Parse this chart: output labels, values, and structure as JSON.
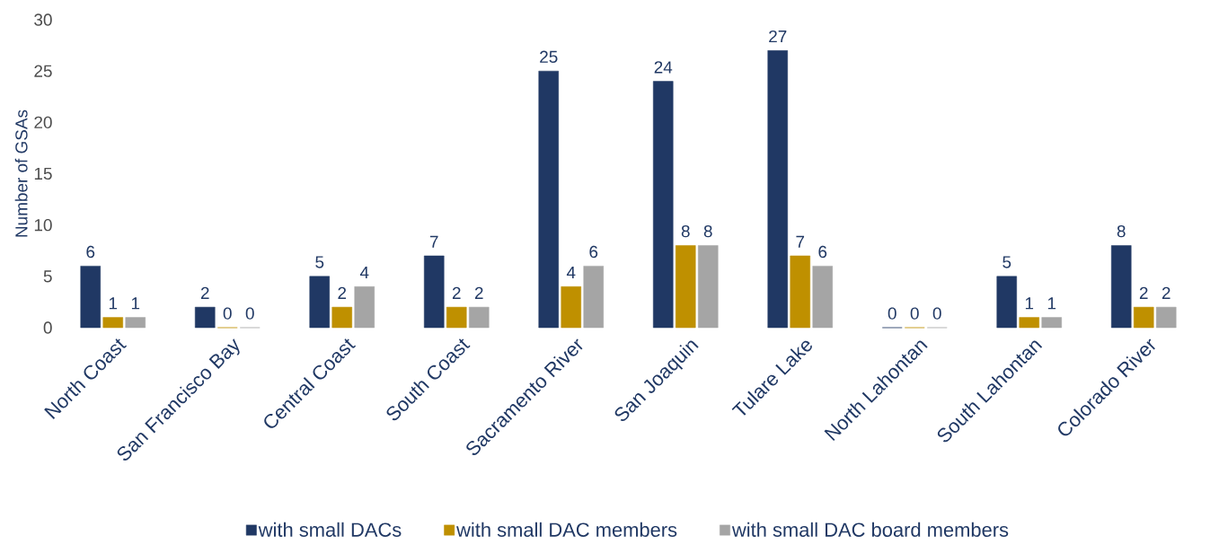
{
  "chart_data": {
    "type": "bar",
    "ylabel": "Number of GSAs",
    "categories": [
      "North Coast",
      "San Francisco Bay",
      "Central Coast",
      "South Coast",
      "Sacramento River",
      "San Joaquin",
      "Tulare Lake",
      "North Lahontan",
      "South Lahontan",
      "Colorado River"
    ],
    "series": [
      {
        "name": "with small DACs",
        "color": "#203864",
        "values": [
          6,
          2,
          5,
          7,
          25,
          24,
          27,
          0,
          5,
          8
        ]
      },
      {
        "name": "with small DAC members",
        "color": "#bf9000",
        "values": [
          1,
          0,
          2,
          2,
          4,
          8,
          7,
          0,
          1,
          2
        ]
      },
      {
        "name": "with small DAC board members",
        "color": "#a5a5a5",
        "values": [
          1,
          0,
          4,
          2,
          6,
          8,
          6,
          0,
          1,
          2
        ]
      }
    ],
    "ylim": [
      0,
      30
    ],
    "yticks": [
      0,
      5,
      10,
      15,
      20,
      25,
      30
    ],
    "grid": false,
    "legend": "bottom",
    "data_labels": true
  }
}
